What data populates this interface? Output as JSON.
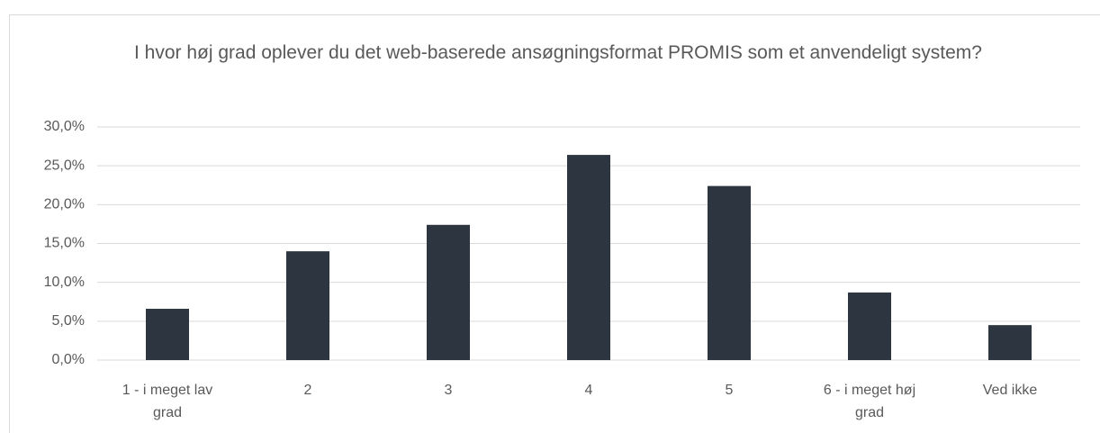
{
  "chart_data": {
    "type": "bar",
    "title": "I hvor høj grad oplever du det web-baserede ansøgningsformat PROMIS som et anvendeligt system?",
    "categories": [
      "1 - i meget lav grad",
      "2",
      "3",
      "4",
      "5",
      "6 - i meget høj grad",
      "Ved ikke"
    ],
    "values": [
      6.6,
      14.0,
      17.4,
      26.4,
      22.4,
      8.7,
      4.5
    ],
    "color": "#2d3640",
    "ylim": [
      0,
      30
    ],
    "yticks": [
      {
        "value": 0,
        "label": "0,0%"
      },
      {
        "value": 5,
        "label": "5,0%"
      },
      {
        "value": 10,
        "label": "10,0%"
      },
      {
        "value": 15,
        "label": "15,0%"
      },
      {
        "value": 20,
        "label": "20,0%"
      },
      {
        "value": 25,
        "label": "25,0%"
      },
      {
        "value": 30,
        "label": "30,0%"
      }
    ],
    "grid": true
  }
}
